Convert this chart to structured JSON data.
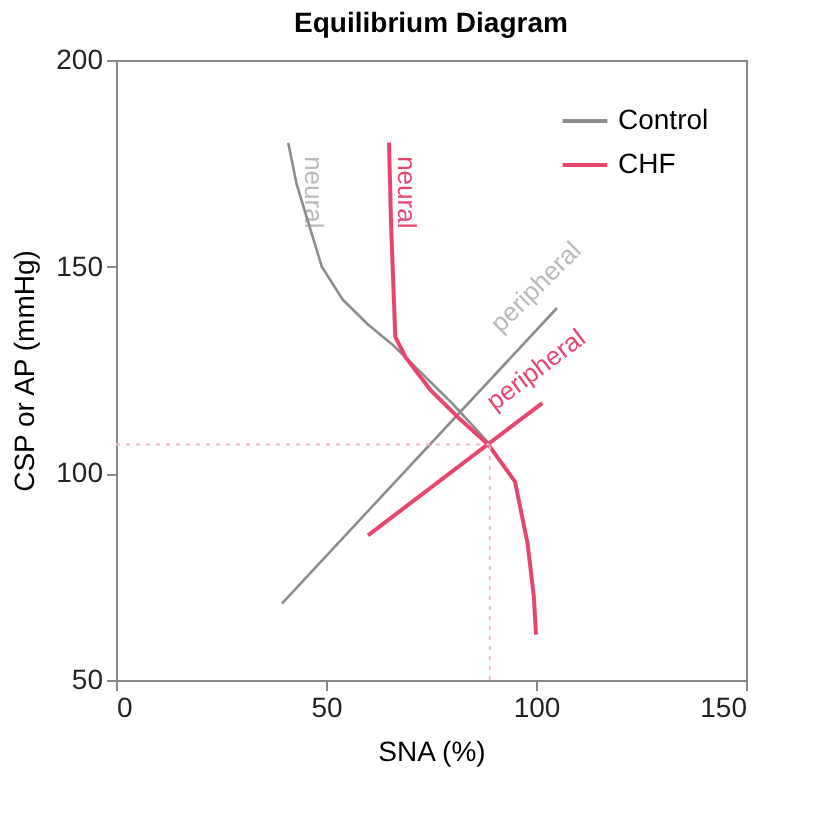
{
  "chart_data": {
    "type": "line",
    "title": "Equilibrium Diagram",
    "xlabel": "SNA (%)",
    "ylabel": "CSP or AP (mmHg)",
    "series": [
      {
        "name": "Control",
        "color": "#8c8c8c",
        "x": [
          41,
          43,
          46,
          49,
          54,
          60,
          66,
          73,
          80,
          89
        ],
        "values": [
          180,
          170,
          160,
          150,
          142,
          136,
          131,
          124,
          117,
          107
        ]
      },
      {
        "color": "#8c8c8c",
        "x": [
          39.5,
          105
        ],
        "values": [
          68.5,
          140
        ]
      },
      {
        "name": "CHF",
        "color": "#e8456e",
        "x": [
          65,
          65.5,
          66.5,
          69,
          75,
          82,
          88.6,
          95,
          98,
          99.5,
          100
        ],
        "values": [
          180,
          160,
          133,
          128,
          120,
          113,
          107,
          98,
          83,
          70,
          61
        ]
      },
      {
        "color": "#e8456e",
        "x": [
          60,
          101.5
        ],
        "values": [
          85,
          117
        ]
      }
    ],
    "annotations": [
      "neural",
      "peripheral",
      "neural",
      "peripheral"
    ],
    "ref_lines": [
      {
        "axis": "y",
        "value": 107,
        "color": "#f4b8c8",
        "line_style": "dotted"
      },
      {
        "axis": "x",
        "value": 89,
        "color": "#f4b8c8",
        "line_style": "dotted"
      }
    ],
    "xlim": [
      0,
      150
    ],
    "ylim": [
      50,
      200
    ],
    "xticks": [
      0,
      50,
      100,
      150
    ],
    "yticks": [
      50,
      100,
      150,
      200
    ],
    "legend": "top right",
    "grid": false
  }
}
